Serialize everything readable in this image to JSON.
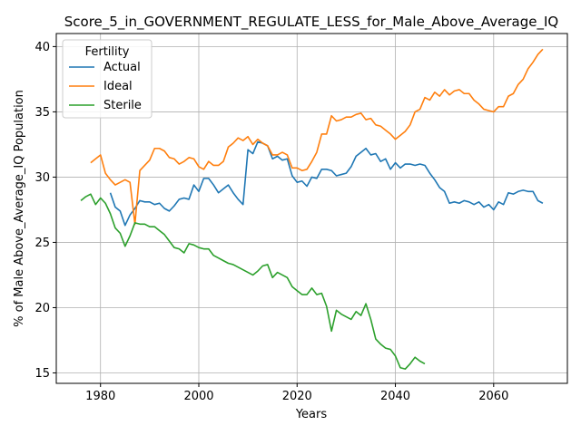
{
  "chart_data": {
    "type": "line",
    "title": "Score_5_in_GOVERNMENT_REGULATE_LESS_for_Male_Above_Average_IQ",
    "xlabel": "Years",
    "ylabel": "% of Male Above_Average_IQ Population",
    "xlim": [
      1971,
      2075
    ],
    "ylim": [
      14.2,
      41.0
    ],
    "xticks": [
      1980,
      2000,
      2020,
      2040,
      2060
    ],
    "yticks": [
      15,
      20,
      25,
      30,
      35,
      40
    ],
    "grid": true,
    "legend": {
      "title": "Fertility",
      "placement": "top-left"
    },
    "series": [
      {
        "name": "Actual",
        "color": "#1f77b4",
        "x": [
          1982,
          1983,
          1984,
          1985,
          1986,
          1987,
          1988,
          1989,
          1990,
          1991,
          1992,
          1993,
          1994,
          1995,
          1996,
          1997,
          1998,
          1999,
          2000,
          2001,
          2002,
          2003,
          2004,
          2005,
          2006,
          2007,
          2008,
          2009,
          2010,
          2011,
          2012,
          2013,
          2014,
          2015,
          2016,
          2017,
          2018,
          2019,
          2020,
          2021,
          2022,
          2023,
          2024,
          2025,
          2026,
          2027,
          2028,
          2029,
          2030,
          2031,
          2032,
          2033,
          2034,
          2035,
          2036,
          2037,
          2038,
          2039,
          2040,
          2041,
          2042,
          2043,
          2044,
          2045,
          2046,
          2047,
          2048,
          2049,
          2050,
          2051,
          2052,
          2053,
          2054,
          2055,
          2056,
          2057,
          2058,
          2059,
          2060,
          2061,
          2062,
          2063,
          2064,
          2065,
          2066,
          2067,
          2068,
          2069,
          2070
        ],
        "y": [
          28.8,
          27.7,
          27.4,
          26.3,
          27.1,
          27.6,
          28.2,
          28.1,
          28.1,
          27.9,
          28.0,
          27.6,
          27.4,
          27.8,
          28.3,
          28.4,
          28.3,
          29.4,
          28.9,
          29.9,
          29.9,
          29.4,
          28.8,
          29.1,
          29.4,
          28.8,
          28.3,
          27.9,
          32.1,
          31.8,
          32.7,
          32.6,
          32.4,
          31.4,
          31.6,
          31.3,
          31.4,
          30.1,
          29.6,
          29.7,
          29.3,
          30.0,
          29.9,
          30.6,
          30.6,
          30.5,
          30.1,
          30.2,
          30.3,
          30.8,
          31.6,
          31.9,
          32.2,
          31.7,
          31.8,
          31.2,
          31.4,
          30.6,
          31.1,
          30.7,
          31.0,
          31.0,
          30.9,
          31.0,
          30.9,
          30.3,
          29.8,
          29.2,
          28.9,
          28.0,
          28.1,
          28.0,
          28.2,
          28.1,
          27.9,
          28.1,
          27.7,
          27.9,
          27.5,
          28.1,
          27.9,
          28.8,
          28.7,
          28.9,
          29.0,
          28.9,
          28.9,
          28.2,
          28.0
        ]
      },
      {
        "name": "Ideal",
        "color": "#ff7f0e",
        "x": [
          1978,
          1979,
          1980,
          1981,
          1982,
          1983,
          1984,
          1985,
          1986,
          1987,
          1988,
          1989,
          1990,
          1991,
          1992,
          1993,
          1994,
          1995,
          1996,
          1997,
          1998,
          1999,
          2000,
          2001,
          2002,
          2003,
          2004,
          2005,
          2006,
          2007,
          2008,
          2009,
          2010,
          2011,
          2012,
          2013,
          2014,
          2015,
          2016,
          2017,
          2018,
          2019,
          2020,
          2021,
          2022,
          2023,
          2024,
          2025,
          2026,
          2027,
          2028,
          2029,
          2030,
          2031,
          2032,
          2033,
          2034,
          2035,
          2036,
          2037,
          2038,
          2039,
          2040,
          2041,
          2042,
          2043,
          2044,
          2045,
          2046,
          2047,
          2048,
          2049,
          2050,
          2051,
          2052,
          2053,
          2054,
          2055,
          2056,
          2057,
          2058,
          2059,
          2060,
          2061,
          2062,
          2063,
          2064,
          2065,
          2066,
          2067,
          2068,
          2069,
          2070
        ],
        "y": [
          31.1,
          31.4,
          31.7,
          30.3,
          29.8,
          29.4,
          29.6,
          29.8,
          29.6,
          26.4,
          30.5,
          30.9,
          31.3,
          32.2,
          32.2,
          32.0,
          31.5,
          31.4,
          31.0,
          31.2,
          31.5,
          31.4,
          30.8,
          30.6,
          31.2,
          30.9,
          30.9,
          31.2,
          32.3,
          32.6,
          33.0,
          32.8,
          33.1,
          32.5,
          32.9,
          32.6,
          32.4,
          31.7,
          31.7,
          31.9,
          31.7,
          30.7,
          30.7,
          30.5,
          30.6,
          31.2,
          31.9,
          33.3,
          33.3,
          34.7,
          34.3,
          34.4,
          34.6,
          34.6,
          34.8,
          34.9,
          34.4,
          34.5,
          34.0,
          33.9,
          33.6,
          33.3,
          32.9,
          33.2,
          33.5,
          34.0,
          35.0,
          35.2,
          36.1,
          35.9,
          36.5,
          36.2,
          36.7,
          36.3,
          36.6,
          36.7,
          36.4,
          36.4,
          35.9,
          35.6,
          35.2,
          35.1,
          35.0,
          35.4,
          35.4,
          36.2,
          36.4,
          37.1,
          37.5,
          38.3,
          38.8,
          39.4,
          39.8
        ]
      },
      {
        "name": "Sterile",
        "color": "#2ca02c",
        "x": [
          1976,
          1977,
          1978,
          1979,
          1980,
          1981,
          1982,
          1983,
          1984,
          1985,
          1986,
          1987,
          1988,
          1989,
          1990,
          1991,
          1992,
          1993,
          1994,
          1995,
          1996,
          1997,
          1998,
          1999,
          2000,
          2001,
          2002,
          2003,
          2004,
          2005,
          2006,
          2007,
          2008,
          2009,
          2010,
          2011,
          2012,
          2013,
          2014,
          2015,
          2016,
          2017,
          2018,
          2019,
          2020,
          2021,
          2022,
          2023,
          2024,
          2025,
          2026,
          2027,
          2028,
          2029,
          2030,
          2031,
          2032,
          2033,
          2034,
          2035,
          2036,
          2037,
          2038,
          2039,
          2040,
          2041,
          2042,
          2043,
          2044,
          2045,
          2046
        ],
        "y": [
          28.2,
          28.5,
          28.7,
          27.9,
          28.4,
          28.0,
          27.2,
          26.1,
          25.7,
          24.7,
          25.5,
          26.5,
          26.4,
          26.4,
          26.2,
          26.2,
          25.9,
          25.6,
          25.1,
          24.6,
          24.5,
          24.2,
          24.9,
          24.8,
          24.6,
          24.5,
          24.5,
          24.0,
          23.8,
          23.6,
          23.4,
          23.3,
          23.1,
          22.9,
          22.7,
          22.5,
          22.8,
          23.2,
          23.3,
          22.3,
          22.7,
          22.5,
          22.3,
          21.6,
          21.3,
          21.0,
          21.0,
          21.5,
          21.0,
          21.1,
          20.1,
          18.2,
          19.8,
          19.5,
          19.3,
          19.1,
          19.7,
          19.4,
          20.3,
          19.1,
          17.6,
          17.2,
          16.9,
          16.8,
          16.3,
          15.4,
          15.3,
          15.7,
          16.2,
          15.9,
          15.7
        ]
      }
    ]
  }
}
